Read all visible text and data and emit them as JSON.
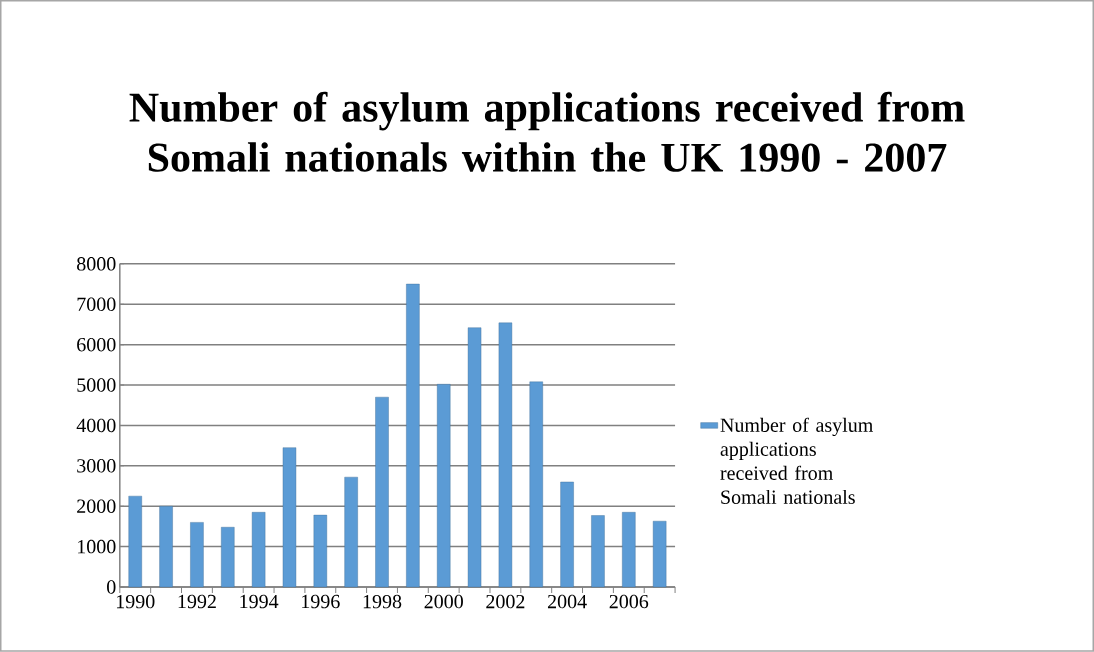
{
  "chart_data": {
    "type": "bar",
    "title": "Number of asylum applications received from Somali nationals within the UK 1990 - 2007",
    "categories": [
      "1990",
      null,
      "1992",
      null,
      "1994",
      null,
      "1996",
      null,
      "1998",
      null,
      "2000",
      null,
      "2002",
      null,
      "2004",
      null,
      "2006",
      null
    ],
    "series": [
      {
        "name": "Number of asylum applications received from Somali nationals",
        "color": "#5b9bd5",
        "values": [
          2250,
          2000,
          1600,
          1480,
          1850,
          3450,
          1780,
          2720,
          4700,
          7500,
          5020,
          6420,
          6540,
          5080,
          2600,
          1770,
          1850,
          1630
        ]
      }
    ],
    "ylim": [
      0,
      8000
    ],
    "yticks": [
      0,
      1000,
      2000,
      3000,
      4000,
      5000,
      6000,
      7000,
      8000
    ],
    "grid": "y",
    "legend": "right"
  }
}
